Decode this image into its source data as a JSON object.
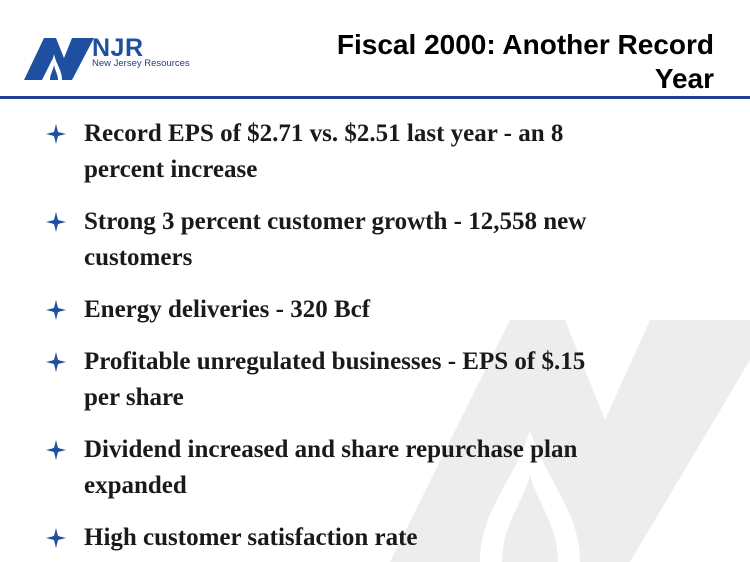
{
  "header": {
    "logo": {
      "abbr": "NJR",
      "name": "New Jersey Resources",
      "icon": "njr-logo-mark"
    },
    "title_lines": [
      "Fiscal 2000:  Another Record",
      "Year"
    ]
  },
  "bullets": [
    {
      "line1": "Record EPS of $2.71 vs. $2.51 last year - an 8",
      "line2": "percent increase"
    },
    {
      "line1": "Strong 3 percent customer growth - 12,558 new",
      "line2": "customers"
    },
    {
      "line1": "Energy deliveries - 320 Bcf",
      "line2": ""
    },
    {
      "line1": "Profitable unregulated businesses - EPS of $.15",
      "line2": "per share"
    },
    {
      "line1": "Dividend increased and share repurchase plan",
      "line2": "expanded"
    },
    {
      "line1": "High customer satisfaction rate",
      "line2": ""
    }
  ],
  "bullet_icon": "four-point-star-icon",
  "colors": {
    "brand_blue": "#1f4fa0",
    "rule": "#1f3f8f",
    "watermark": "#ececec",
    "text": "#1a1a1a"
  }
}
